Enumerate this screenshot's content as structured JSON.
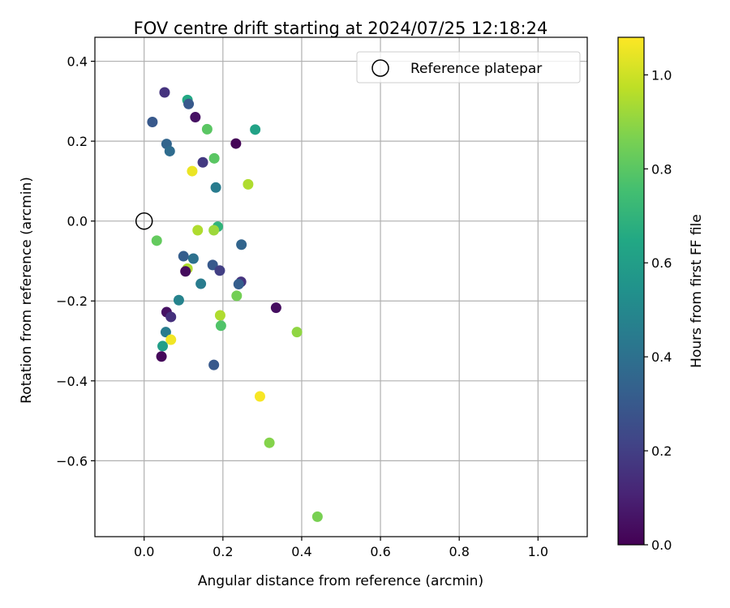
{
  "chart_data": {
    "type": "scatter",
    "title": "FOV centre drift starting at 2024/07/25 12:18:24",
    "xlabel": "Angular distance from reference (arcmin)",
    "ylabel": "Rotation from reference (arcmin)",
    "xlim": [
      -0.125,
      1.125
    ],
    "ylim": [
      -0.79,
      0.46
    ],
    "xticks": [
      0.0,
      0.2,
      0.4,
      0.6,
      0.8,
      1.0
    ],
    "xtick_labels": [
      "0.0",
      "0.2",
      "0.4",
      "0.6",
      "0.8",
      "1.0"
    ],
    "yticks": [
      0.4,
      0.2,
      0.0,
      -0.2,
      -0.4,
      -0.6
    ],
    "ytick_labels": [
      "0.4",
      "0.2",
      "0.0",
      "−0.2",
      "−0.4",
      "−0.6"
    ],
    "grid": true,
    "legend": {
      "placement": "top-right",
      "entries": [
        "Reference platepar"
      ]
    },
    "reference_point": {
      "x": 0.0,
      "y": 0.0
    },
    "colorbar": {
      "label": "Hours from first FF file",
      "colormap": "viridis",
      "range": [
        0.0,
        1.08
      ],
      "ticks": [
        0.0,
        0.2,
        0.4,
        0.6,
        0.8,
        1.0
      ],
      "tick_labels": [
        "0.0",
        "0.2",
        "0.4",
        "0.6",
        "0.8",
        "1.0"
      ]
    },
    "points": [
      {
        "x": 0.052,
        "y": 0.322,
        "c": 0.16
      },
      {
        "x": 0.11,
        "y": 0.303,
        "c": 0.65
      },
      {
        "x": 0.113,
        "y": 0.293,
        "c": 0.3
      },
      {
        "x": 0.13,
        "y": 0.26,
        "c": 0.05
      },
      {
        "x": 0.021,
        "y": 0.248,
        "c": 0.3
      },
      {
        "x": 0.16,
        "y": 0.23,
        "c": 0.8
      },
      {
        "x": 0.282,
        "y": 0.229,
        "c": 0.62
      },
      {
        "x": 0.233,
        "y": 0.194,
        "c": 0.01
      },
      {
        "x": 0.057,
        "y": 0.193,
        "c": 0.35
      },
      {
        "x": 0.065,
        "y": 0.175,
        "c": 0.38
      },
      {
        "x": 0.178,
        "y": 0.157,
        "c": 0.8
      },
      {
        "x": 0.149,
        "y": 0.147,
        "c": 0.18
      },
      {
        "x": 0.122,
        "y": 0.125,
        "c": 1.05
      },
      {
        "x": 0.264,
        "y": 0.092,
        "c": 0.95
      },
      {
        "x": 0.182,
        "y": 0.084,
        "c": 0.45
      },
      {
        "x": 0.187,
        "y": -0.014,
        "c": 0.7
      },
      {
        "x": 0.136,
        "y": -0.023,
        "c": 0.95
      },
      {
        "x": 0.177,
        "y": -0.023,
        "c": 0.92
      },
      {
        "x": 0.032,
        "y": -0.049,
        "c": 0.82
      },
      {
        "x": 0.247,
        "y": -0.059,
        "c": 0.35
      },
      {
        "x": 0.1,
        "y": -0.088,
        "c": 0.32
      },
      {
        "x": 0.125,
        "y": -0.094,
        "c": 0.4
      },
      {
        "x": 0.174,
        "y": -0.11,
        "c": 0.3
      },
      {
        "x": 0.11,
        "y": -0.119,
        "c": 0.95
      },
      {
        "x": 0.192,
        "y": -0.124,
        "c": 0.2
      },
      {
        "x": 0.105,
        "y": -0.126,
        "c": 0.03
      },
      {
        "x": 0.144,
        "y": -0.157,
        "c": 0.45
      },
      {
        "x": 0.246,
        "y": -0.152,
        "c": 0.16
      },
      {
        "x": 0.24,
        "y": -0.158,
        "c": 0.32
      },
      {
        "x": 0.235,
        "y": -0.187,
        "c": 0.85
      },
      {
        "x": 0.088,
        "y": -0.198,
        "c": 0.48
      },
      {
        "x": 0.335,
        "y": -0.217,
        "c": 0.04
      },
      {
        "x": 0.057,
        "y": -0.228,
        "c": 0.05
      },
      {
        "x": 0.068,
        "y": -0.24,
        "c": 0.15
      },
      {
        "x": 0.193,
        "y": -0.236,
        "c": 0.95
      },
      {
        "x": 0.195,
        "y": -0.262,
        "c": 0.78
      },
      {
        "x": 0.388,
        "y": -0.278,
        "c": 0.9
      },
      {
        "x": 0.055,
        "y": -0.278,
        "c": 0.45
      },
      {
        "x": 0.068,
        "y": -0.297,
        "c": 1.06
      },
      {
        "x": 0.047,
        "y": -0.313,
        "c": 0.6
      },
      {
        "x": 0.044,
        "y": -0.339,
        "c": 0.02
      },
      {
        "x": 0.177,
        "y": -0.36,
        "c": 0.3
      },
      {
        "x": 0.294,
        "y": -0.439,
        "c": 1.07
      },
      {
        "x": 0.318,
        "y": -0.555,
        "c": 0.88
      },
      {
        "x": 0.44,
        "y": -0.74,
        "c": 0.86
      }
    ]
  }
}
